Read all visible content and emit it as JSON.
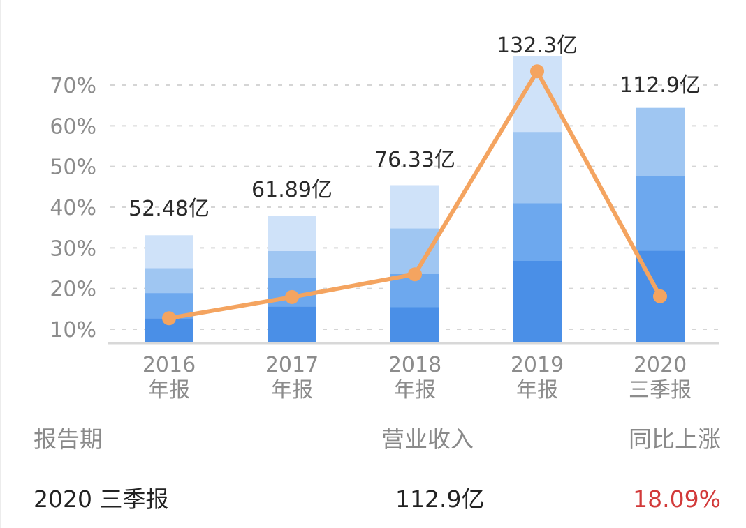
{
  "chart_data": {
    "type": "bar",
    "title": "",
    "xlabel": "",
    "ylabel": "",
    "categories": [
      "2016 年报",
      "2017 年报",
      "2018 年报",
      "2019 年报",
      "2020 三季报"
    ],
    "category_lines": [
      [
        "2016",
        "年报"
      ],
      [
        "2017",
        "年报"
      ],
      [
        "2018",
        "年报"
      ],
      [
        "2019",
        "年报"
      ],
      [
        "2020",
        "三季报"
      ]
    ],
    "revenue_labels": [
      "52.48亿",
      "61.89亿",
      "76.33亿",
      "132.3亿",
      "112.9亿"
    ],
    "revenue_values": [
      52.48,
      61.89,
      76.33,
      132.3,
      112.9
    ],
    "bar_segments_percent": [
      [
        12.7,
        18.9,
        25.0,
        33.1
      ],
      [
        15.6,
        22.6,
        29.2,
        37.9
      ],
      [
        15.4,
        23.6,
        34.8,
        45.4
      ],
      [
        26.8,
        41.0,
        58.5,
        77.1
      ],
      [
        29.3,
        47.6,
        64.4
      ]
    ],
    "bar_colors": [
      "#4a8fe7",
      "#6da8ee",
      "#9fc6f2",
      "#cfe2f9"
    ],
    "series": [
      {
        "name": "同比上涨",
        "type": "line",
        "color": "#f4a460",
        "values": [
          12.7,
          17.9,
          23.5,
          73.4,
          18.09
        ]
      }
    ],
    "yticks": [
      "10%",
      "20%",
      "30%",
      "40%",
      "50%",
      "60%",
      "70%"
    ],
    "ylim": [
      6.5,
      75
    ],
    "grid": true,
    "grid_style": "dashed"
  },
  "table": {
    "headers": {
      "period": "报告期",
      "revenue": "营业收入",
      "yoy": "同比上涨"
    },
    "row": {
      "period": "2020 三季报",
      "revenue": "112.9亿",
      "yoy": "18.09%"
    },
    "yoy_color": "#d23a3a"
  }
}
